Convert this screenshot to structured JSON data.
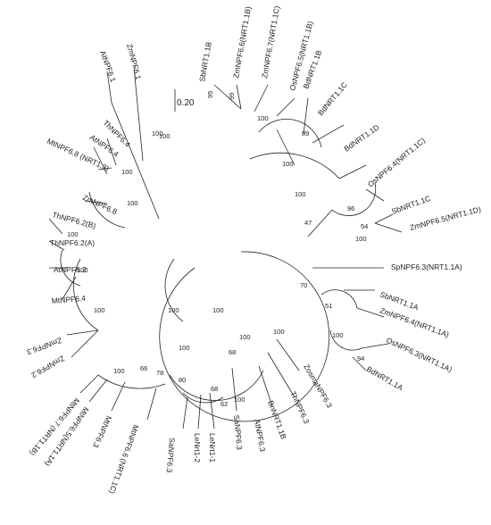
{
  "scale_bar": {
    "label": "0.20"
  },
  "leaves": [
    {
      "label": "SbNRT1.1B"
    },
    {
      "label": "ZmNPF6.6(NRT1.1B)"
    },
    {
      "label": "ZmNPF6.7(NRT1.1C)"
    },
    {
      "label": "OsNPF6.5(NRT1.1B)"
    },
    {
      "label": "BdNRT1.1B"
    },
    {
      "label": "BdNRT1.1C"
    },
    {
      "label": "BdNRT1.1D"
    },
    {
      "label": "OsNPF6.4(NRT1.1C)"
    },
    {
      "label": "SbNRT1.1C"
    },
    {
      "label": "ZmNPF6.5(NRT1.1D)"
    },
    {
      "label": "SpNPF6.3(NRT1.1A)"
    },
    {
      "label": "SbNRT1.1A"
    },
    {
      "label": "ZmNPF6.4(NRT1.1A)"
    },
    {
      "label": "OsNPF6.3(NRT1.1A)"
    },
    {
      "label": "BdNRT1.1A"
    },
    {
      "label": "ZosmaNPF6.3"
    },
    {
      "label": "ThNPF6.3"
    },
    {
      "label": "BnNRT1.1B"
    },
    {
      "label": "AtNPF6.3"
    },
    {
      "label": "SaNPF6.3"
    },
    {
      "label": "LeNrt1-1"
    },
    {
      "label": "LeNrt1-2"
    },
    {
      "label": "SaNPF6.3"
    },
    {
      "label": "MtNPF6.6 (NRT1.1C)"
    },
    {
      "label": "MtNPF6.3"
    },
    {
      "label": "MtNPF6.5(NRT1.1A)"
    },
    {
      "label": "MtNPF6.7 (NRT1.1B)"
    },
    {
      "label": "ZmNPF6.2"
    },
    {
      "label": "ZmNPF6.3"
    },
    {
      "label": "MtNPF6.4"
    },
    {
      "label": "AtNPF6.2"
    },
    {
      "label": "ThNPF6.2(A)"
    },
    {
      "label": "ThNPF6.2(B)"
    },
    {
      "label": "ZmNPF6.8"
    },
    {
      "label": "MtNPF6.8 (NRT1.3)"
    },
    {
      "label": "AtNPF6.4"
    },
    {
      "label": "ThNPF6.4"
    },
    {
      "label": "AtNPF6.1"
    },
    {
      "label": "ZmNPF6.1"
    }
  ],
  "bootstraps": [
    {
      "value": "95"
    },
    {
      "value": "99"
    },
    {
      "value": "100"
    },
    {
      "value": "89"
    },
    {
      "value": "100"
    },
    {
      "value": "100"
    },
    {
      "value": "96"
    },
    {
      "value": "54"
    },
    {
      "value": "100"
    },
    {
      "value": "47"
    },
    {
      "value": "70"
    },
    {
      "value": "51"
    },
    {
      "value": "100"
    },
    {
      "value": "94"
    },
    {
      "value": "100"
    },
    {
      "value": "100"
    },
    {
      "value": "68"
    },
    {
      "value": "62"
    },
    {
      "value": "68"
    },
    {
      "value": "100"
    },
    {
      "value": "80"
    },
    {
      "value": "78"
    },
    {
      "value": "66"
    },
    {
      "value": "100"
    },
    {
      "value": "100"
    },
    {
      "value": "100"
    },
    {
      "value": "100"
    },
    {
      "value": "100"
    },
    {
      "value": "100"
    },
    {
      "value": "100"
    },
    {
      "value": "100"
    },
    {
      "value": "100"
    },
    {
      "value": "100"
    },
    {
      "value": "100"
    }
  ]
}
